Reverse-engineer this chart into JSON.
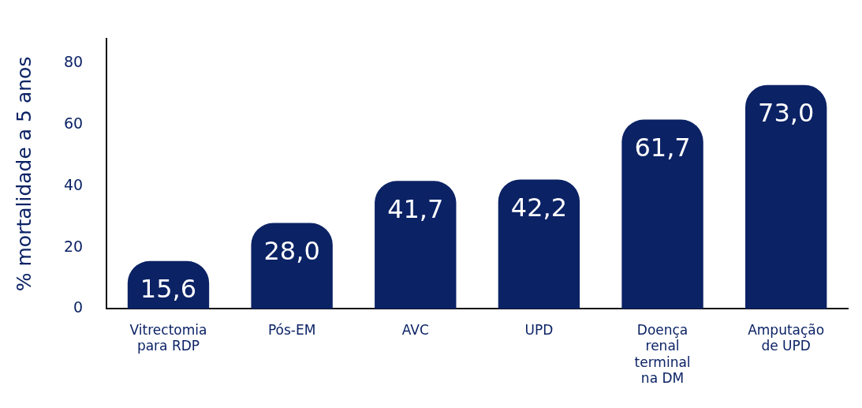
{
  "chart_data": {
    "type": "bar",
    "ylabel": "% mortalidade a 5 anos",
    "categories": [
      "Vitrectomia para RDP",
      "Pós-EM",
      "AVC",
      "UPD",
      "Doença renal terminal na DM",
      "Amputação de UPD"
    ],
    "values": [
      15.6,
      28.0,
      41.7,
      42.2,
      61.7,
      73.0
    ],
    "value_labels": [
      "15,6",
      "28,0",
      "41,7",
      "42,2",
      "61,7",
      "73,0"
    ],
    "color": "#0b2265",
    "ylim": [
      0,
      88
    ],
    "yticks": [
      0,
      20,
      40,
      60,
      80
    ],
    "grid": false,
    "legend": false
  }
}
